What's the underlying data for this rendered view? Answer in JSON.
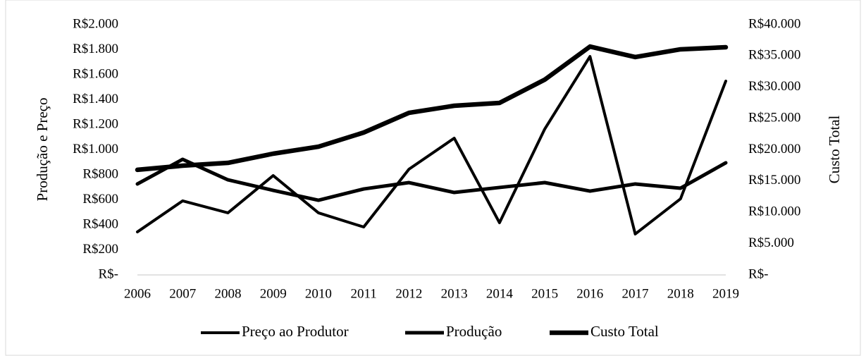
{
  "chart_data": {
    "type": "line",
    "y_label": "Produção e Preço",
    "y2_label": "Custo Total",
    "x": [
      "2006",
      "2007",
      "2008",
      "2009",
      "2010",
      "2011",
      "2012",
      "2013",
      "2014",
      "2015",
      "2016",
      "2017",
      "2018",
      "2019"
    ],
    "series": [
      {
        "name": "Preço ao Produtor",
        "color": "#000000",
        "values": [
          344,
          592,
          496,
          794,
          496,
          383,
          845,
          1093,
          417,
          1166,
          1746,
          327,
          608,
          1549
        ]
      },
      {
        "name": "Produção",
        "color": "#000000",
        "values": [
          727,
          924,
          760,
          676,
          597,
          687,
          738,
          659,
          699,
          738,
          670,
          727,
          693,
          896
        ]
      },
      {
        "name": "Custo Total",
        "color": "#000000",
        "axis": "y2",
        "values": [
          16800,
          17460,
          17910,
          19380,
          20500,
          22760,
          25910,
          27040,
          27490,
          31210,
          36500,
          34820,
          36060,
          36390
        ]
      }
    ],
    "ylim": [
      0,
      2000
    ],
    "yticks": [
      {
        "value": 0,
        "label": "R$-"
      },
      {
        "value": 200,
        "label": "R$200"
      },
      {
        "value": 400,
        "label": "R$400"
      },
      {
        "value": 600,
        "label": "R$600"
      },
      {
        "value": 800,
        "label": "R$800"
      },
      {
        "value": 1000,
        "label": "R$1.000"
      },
      {
        "value": 1200,
        "label": "R$1.200"
      },
      {
        "value": 1400,
        "label": "R$1.400"
      },
      {
        "value": 1600,
        "label": "R$1.600"
      },
      {
        "value": 1800,
        "label": "R$1.800"
      },
      {
        "value": 2000,
        "label": "R$2.000"
      }
    ],
    "y2lim": [
      0,
      40000
    ],
    "y2ticks": [
      {
        "value": 0,
        "label": "R$-"
      },
      {
        "value": 5000,
        "label": "R$5.000"
      },
      {
        "value": 10000,
        "label": "R$10.000"
      },
      {
        "value": 15000,
        "label": "R$15.000"
      },
      {
        "value": 20000,
        "label": "R$20.000"
      },
      {
        "value": 25000,
        "label": "R$25.000"
      },
      {
        "value": 30000,
        "label": "R$30.000"
      },
      {
        "value": 35000,
        "label": "R$35.000"
      },
      {
        "value": 40000,
        "label": "R$40.000"
      }
    ],
    "grid": false,
    "legend": "bottom"
  }
}
